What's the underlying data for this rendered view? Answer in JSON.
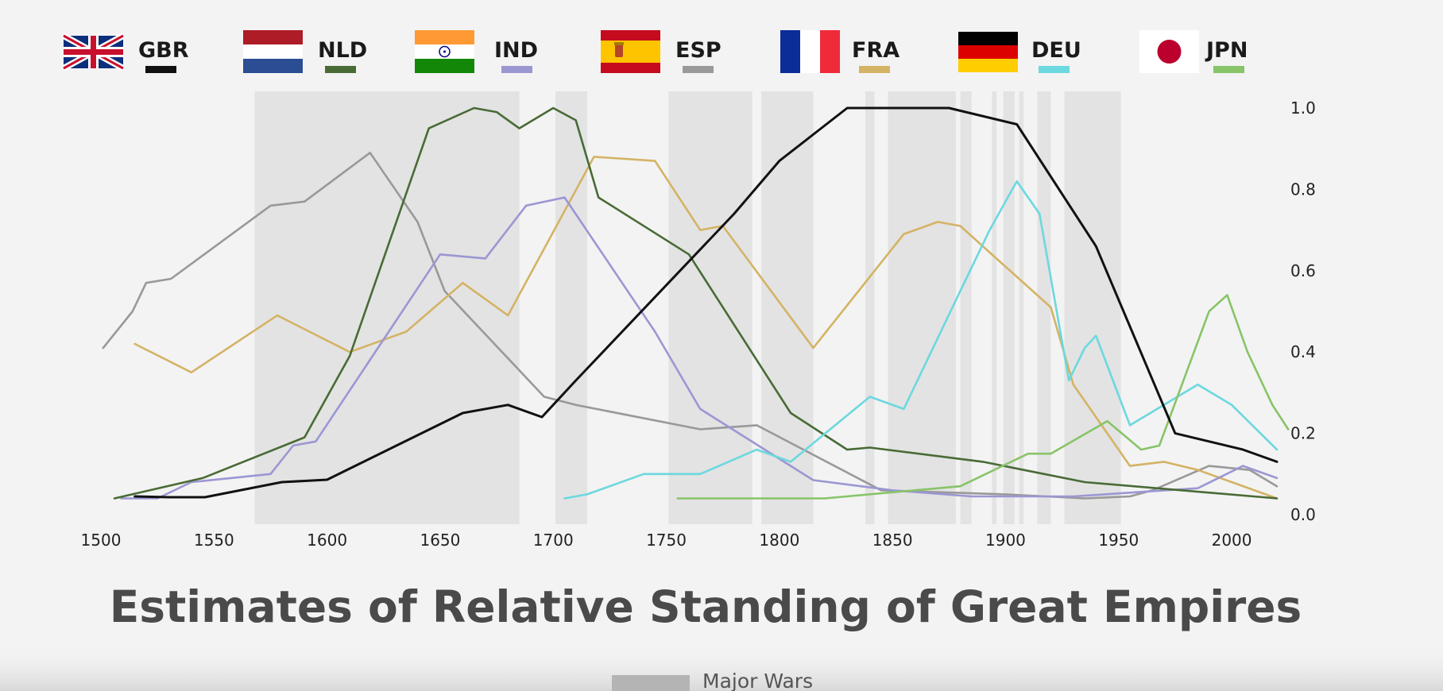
{
  "chart_data": {
    "type": "line",
    "title": "Estimates of Relative Standing of Great Empires",
    "xlim": [
      1500,
      2020
    ],
    "ylim": [
      0,
      1.0
    ],
    "x_ticks": [
      "1500",
      "1550",
      "1600",
      "1650",
      "1700",
      "1750",
      "1800",
      "1850",
      "1900",
      "1950",
      "2000"
    ],
    "y_ticks": [
      "0.0",
      "0.2",
      "0.4",
      "0.6",
      "0.8",
      "1.0"
    ],
    "wars_label": "Major Wars",
    "wars": [
      [
        1568,
        1685
      ],
      [
        1701,
        1715
      ],
      [
        1751,
        1788
      ],
      [
        1792,
        1815
      ],
      [
        1838,
        1842
      ],
      [
        1848,
        1878
      ],
      [
        1880,
        1885
      ],
      [
        1894,
        1896
      ],
      [
        1899,
        1904
      ],
      [
        1906,
        1908
      ],
      [
        1914,
        1920
      ],
      [
        1926,
        1951
      ]
    ],
    "series": [
      {
        "name": "GBR",
        "flag": "gbr-flag",
        "color": "#111111",
        "points": [
          [
            1515,
            0.045
          ],
          [
            1530,
            0.043
          ],
          [
            1546,
            0.043
          ],
          [
            1580,
            0.08
          ],
          [
            1600,
            0.086
          ],
          [
            1660,
            0.25
          ],
          [
            1680,
            0.27
          ],
          [
            1695,
            0.24
          ],
          [
            1710,
            0.33
          ],
          [
            1780,
            0.74
          ],
          [
            1800,
            0.87
          ],
          [
            1830,
            1.0
          ],
          [
            1875,
            1.0
          ],
          [
            1905,
            0.96
          ],
          [
            1940,
            0.66
          ],
          [
            1975,
            0.2
          ],
          [
            1990,
            0.18
          ],
          [
            2005,
            0.16
          ],
          [
            2020,
            0.13
          ]
        ]
      },
      {
        "name": "NLD",
        "flag": "nld-flag",
        "color": "#496b36",
        "points": [
          [
            1506,
            0.04
          ],
          [
            1545,
            0.09
          ],
          [
            1590,
            0.19
          ],
          [
            1610,
            0.39
          ],
          [
            1645,
            0.95
          ],
          [
            1665,
            1.0
          ],
          [
            1675,
            0.99
          ],
          [
            1685,
            0.95
          ],
          [
            1700,
            1.0
          ],
          [
            1710,
            0.97
          ],
          [
            1720,
            0.78
          ],
          [
            1760,
            0.64
          ],
          [
            1805,
            0.25
          ],
          [
            1830,
            0.16
          ],
          [
            1840,
            0.165
          ],
          [
            1890,
            0.13
          ],
          [
            1935,
            0.08
          ],
          [
            2020,
            0.04
          ]
        ]
      },
      {
        "name": "IND",
        "flag": "ind-flag",
        "color": "#9b97d3",
        "points": [
          [
            1509,
            0.04
          ],
          [
            1525,
            0.04
          ],
          [
            1540,
            0.08
          ],
          [
            1575,
            0.1
          ],
          [
            1585,
            0.17
          ],
          [
            1595,
            0.18
          ],
          [
            1650,
            0.64
          ],
          [
            1670,
            0.63
          ],
          [
            1688,
            0.76
          ],
          [
            1705,
            0.78
          ],
          [
            1745,
            0.45
          ],
          [
            1765,
            0.26
          ],
          [
            1815,
            0.085
          ],
          [
            1850,
            0.06
          ],
          [
            1885,
            0.045
          ],
          [
            1930,
            0.045
          ],
          [
            1985,
            0.065
          ],
          [
            2005,
            0.12
          ],
          [
            2020,
            0.09
          ]
        ]
      },
      {
        "name": "ESP",
        "flag": "esp-flag",
        "color": "#999999",
        "points": [
          [
            1501,
            0.41
          ],
          [
            1514,
            0.5
          ],
          [
            1520,
            0.57
          ],
          [
            1531,
            0.58
          ],
          [
            1575,
            0.76
          ],
          [
            1590,
            0.77
          ],
          [
            1619,
            0.89
          ],
          [
            1640,
            0.72
          ],
          [
            1652,
            0.55
          ],
          [
            1696,
            0.29
          ],
          [
            1710,
            0.27
          ],
          [
            1765,
            0.21
          ],
          [
            1790,
            0.22
          ],
          [
            1845,
            0.06
          ],
          [
            1900,
            0.05
          ],
          [
            1935,
            0.04
          ],
          [
            1955,
            0.045
          ],
          [
            1965,
            0.06
          ],
          [
            1990,
            0.12
          ],
          [
            2008,
            0.11
          ],
          [
            2020,
            0.07
          ]
        ]
      },
      {
        "name": "FRA",
        "flag": "fra-flag",
        "color": "#d4b365",
        "points": [
          [
            1515,
            0.42
          ],
          [
            1540,
            0.35
          ],
          [
            1578,
            0.49
          ],
          [
            1610,
            0.4
          ],
          [
            1635,
            0.45
          ],
          [
            1660,
            0.57
          ],
          [
            1680,
            0.49
          ],
          [
            1718,
            0.88
          ],
          [
            1745,
            0.87
          ],
          [
            1765,
            0.7
          ],
          [
            1775,
            0.71
          ],
          [
            1815,
            0.41
          ],
          [
            1855,
            0.69
          ],
          [
            1870,
            0.72
          ],
          [
            1880,
            0.71
          ],
          [
            1920,
            0.51
          ],
          [
            1930,
            0.32
          ],
          [
            1955,
            0.12
          ],
          [
            1970,
            0.13
          ],
          [
            1985,
            0.11
          ],
          [
            2000,
            0.08
          ],
          [
            2020,
            0.04
          ]
        ]
      },
      {
        "name": "DEU",
        "flag": "deu-flag",
        "color": "#6cd8df",
        "points": [
          [
            1705,
            0.04
          ],
          [
            1715,
            0.05
          ],
          [
            1740,
            0.1
          ],
          [
            1765,
            0.1
          ],
          [
            1790,
            0.16
          ],
          [
            1805,
            0.13
          ],
          [
            1840,
            0.29
          ],
          [
            1855,
            0.26
          ],
          [
            1880,
            0.55
          ],
          [
            1893,
            0.7
          ],
          [
            1905,
            0.82
          ],
          [
            1915,
            0.74
          ],
          [
            1928,
            0.33
          ],
          [
            1935,
            0.41
          ],
          [
            1940,
            0.44
          ],
          [
            1955,
            0.22
          ],
          [
            1985,
            0.32
          ],
          [
            2000,
            0.27
          ],
          [
            2020,
            0.16
          ]
        ]
      },
      {
        "name": "JPN",
        "flag": "jpn-flag",
        "color": "#88c468",
        "points": [
          [
            1755,
            0.04
          ],
          [
            1820,
            0.04
          ],
          [
            1880,
            0.07
          ],
          [
            1910,
            0.15
          ],
          [
            1920,
            0.15
          ],
          [
            1945,
            0.23
          ],
          [
            1960,
            0.16
          ],
          [
            1968,
            0.17
          ],
          [
            1990,
            0.5
          ],
          [
            1998,
            0.54
          ],
          [
            2007,
            0.4
          ],
          [
            2018,
            0.27
          ],
          [
            2025,
            0.21
          ]
        ]
      }
    ]
  }
}
